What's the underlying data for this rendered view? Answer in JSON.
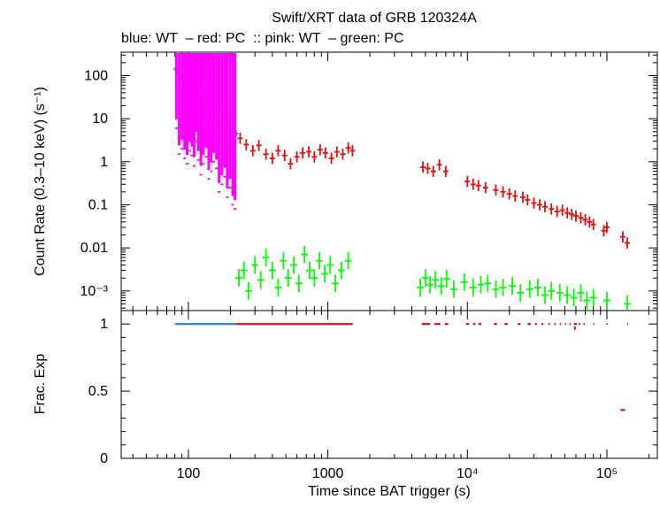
{
  "chart_data": [
    {
      "panel": "count-rate",
      "type": "scatter",
      "title": "Swift/XRT data of GRB 120324A",
      "subtitle": "blue: WT  – red: PC  :: pink: WT  – green: PC",
      "xlabel": "",
      "ylabel": "Count Rate (0.3–10 keV) (s⁻¹)",
      "xscale": "log",
      "yscale": "log",
      "xlim": [
        33,
        230000
      ],
      "ylim": [
        0.00035,
        350
      ],
      "xticks": [
        {
          "v": 100,
          "label": "100"
        },
        {
          "v": 1000,
          "label": "1000"
        },
        {
          "v": 10000,
          "label": "10⁴"
        },
        {
          "v": 100000,
          "label": "10⁵"
        }
      ],
      "yticks": [
        {
          "v": 100,
          "label": "100"
        },
        {
          "v": 10,
          "label": "10"
        },
        {
          "v": 1,
          "label": "1"
        },
        {
          "v": 0.1,
          "label": "0.1"
        },
        {
          "v": 0.01,
          "label": "0.01"
        },
        {
          "v": 0.001,
          "label": "10⁻³"
        }
      ],
      "series": [
        {
          "name": "WT",
          "color": "#1a82e6",
          "marker": "errorbar",
          "x": [
            81,
            84,
            88,
            92,
            96,
            100,
            105,
            110,
            116,
            122,
            128,
            135,
            142,
            150,
            158,
            167,
            176,
            186,
            197,
            208,
            220
          ],
          "y": [
            140,
            120,
            95,
            70,
            110,
            80,
            60,
            85,
            55,
            65,
            45,
            40,
            32,
            28,
            22,
            18,
            14,
            10,
            8,
            6,
            4.5
          ]
        },
        {
          "name": "PC",
          "color": "#e60d0d",
          "marker": "errorbar",
          "x": [
            235,
            260,
            290,
            320,
            360,
            400,
            440,
            490,
            540,
            600,
            660,
            730,
            800,
            880,
            960,
            1060,
            1160,
            1280,
            1400,
            1500,
            4800,
            5200,
            5700,
            6300,
            7000,
            10000,
            11000,
            12000,
            13500,
            16000,
            18000,
            20000,
            22000,
            25000,
            27000,
            30000,
            33000,
            36000,
            40000,
            44000,
            48000,
            52000,
            56000,
            60000,
            65000,
            70000,
            75000,
            80000,
            95000,
            100000,
            130000,
            140000
          ],
          "y": [
            3.5,
            2.5,
            1.8,
            2.4,
            1.5,
            1.2,
            1.8,
            1.4,
            0.9,
            1.3,
            1.6,
            1.7,
            1.3,
            1.9,
            1.6,
            1.2,
            1.7,
            1.5,
            2.1,
            1.8,
            0.75,
            0.7,
            0.6,
            0.85,
            0.6,
            0.35,
            0.3,
            0.28,
            0.25,
            0.22,
            0.2,
            0.18,
            0.16,
            0.15,
            0.13,
            0.11,
            0.1,
            0.09,
            0.08,
            0.07,
            0.075,
            0.065,
            0.06,
            0.055,
            0.05,
            0.045,
            0.04,
            0.035,
            0.025,
            0.03,
            0.018,
            0.013
          ]
        },
        {
          "name": "WT",
          "color": "#ff00ff",
          "marker": "errorbar",
          "x": [
            82,
            86,
            90,
            94,
            98,
            102,
            106,
            110,
            114,
            118,
            123,
            128,
            134,
            140,
            146,
            152,
            159,
            166,
            174,
            182,
            190,
            199,
            208,
            216
          ],
          "y": [
            6,
            1.5,
            2,
            1.2,
            0.9,
            1.8,
            1.4,
            0.8,
            3,
            1.1,
            0.5,
            0.9,
            1.3,
            0.4,
            0.6,
            1,
            0.7,
            0.2,
            0.3,
            0.45,
            0.15,
            0.25,
            0.1,
            0.08
          ]
        },
        {
          "name": "PC",
          "color": "#00ff00",
          "marker": "errorbar",
          "x": [
            230,
            250,
            270,
            300,
            330,
            360,
            400,
            440,
            480,
            520,
            570,
            620,
            680,
            740,
            800,
            870,
            950,
            1040,
            1130,
            1250,
            1400,
            4600,
            5000,
            5400,
            5900,
            6500,
            7100,
            8000,
            9500,
            11000,
            12500,
            14000,
            16000,
            18000,
            21000,
            24000,
            28000,
            32000,
            36000,
            40000,
            46000,
            52000,
            58000,
            65000,
            72000,
            80000,
            100000,
            140000
          ],
          "y": [
            0.002,
            0.003,
            0.001,
            0.004,
            0.0018,
            0.006,
            0.003,
            0.0012,
            0.005,
            0.002,
            0.004,
            0.0015,
            0.007,
            0.003,
            0.002,
            0.005,
            0.0025,
            0.004,
            0.0015,
            0.003,
            0.005,
            0.0012,
            0.002,
            0.0014,
            0.0018,
            0.0013,
            0.0019,
            0.0011,
            0.0016,
            0.0012,
            0.0014,
            0.0015,
            0.0011,
            0.0012,
            0.0013,
            0.0009,
            0.0011,
            0.0012,
            0.0008,
            0.001,
            0.0009,
            0.0008,
            0.0007,
            0.0009,
            0.0006,
            0.0007,
            0.0006,
            0.0005
          ]
        }
      ]
    },
    {
      "panel": "frac-exp",
      "type": "line",
      "xlabel": "Time since BAT trigger (s)",
      "ylabel": "Frac. Exp",
      "xscale": "log",
      "xlim": [
        33,
        230000
      ],
      "ylim": [
        0,
        1.1
      ],
      "yticks": [
        {
          "v": 1,
          "label": "1"
        },
        {
          "v": 0.5,
          "label": "0.5"
        },
        {
          "v": 0,
          "label": "0"
        }
      ],
      "series": [
        {
          "name": "WT",
          "color": "#1a82e6",
          "segments": [
            [
              80,
              220,
              1
            ]
          ]
        },
        {
          "name": "PC",
          "color": "#e60d0d",
          "segments": [
            [
              220,
              1510,
              1
            ],
            [
              4700,
              5400,
              1
            ],
            [
              5800,
              6400,
              1
            ],
            [
              6900,
              7300,
              1
            ],
            [
              9800,
              10300,
              1
            ],
            [
              11000,
              11400,
              1
            ],
            [
              12000,
              12600,
              1
            ],
            [
              15500,
              16300,
              1
            ],
            [
              18500,
              19500,
              1
            ],
            [
              23000,
              24000,
              1
            ],
            [
              27000,
              28500,
              1
            ],
            [
              30500,
              31500,
              1
            ],
            [
              34000,
              35000,
              1
            ],
            [
              38000,
              39000,
              1
            ],
            [
              42000,
              43000,
              1
            ],
            [
              46000,
              47000,
              1
            ],
            [
              50000,
              51000,
              1
            ],
            [
              54000,
              55000,
              1
            ],
            [
              58000,
              61000,
              1
            ],
            [
              63000,
              64500,
              1
            ],
            [
              68000,
              69500,
              1
            ],
            [
              80000,
              81500,
              1
            ],
            [
              99000,
              101000,
              1
            ],
            [
              140000,
              142000,
              1
            ],
            [
              125000,
              135000,
              0.36
            ]
          ],
          "points": [
            [
              59000,
              0.97
            ]
          ]
        }
      ]
    }
  ]
}
